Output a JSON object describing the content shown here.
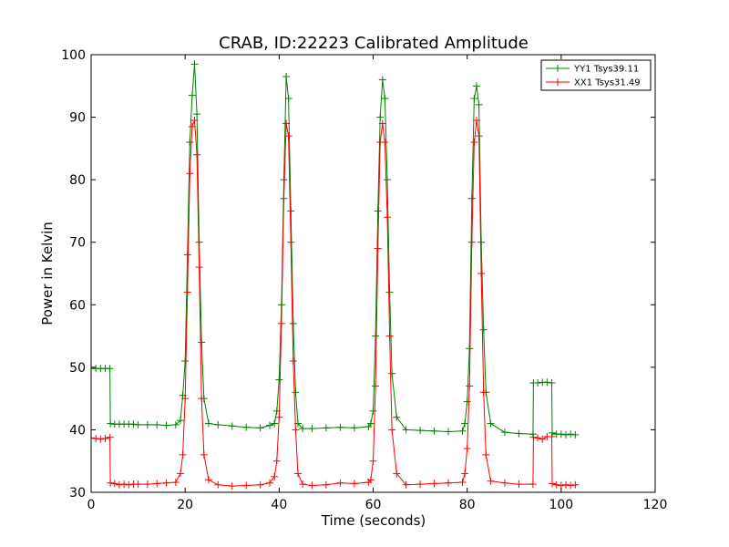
{
  "chart_data": {
    "type": "line",
    "title": "CRAB, ID:22223 Calibrated Amplitude",
    "xlabel": "Time (seconds)",
    "ylabel": "Power in Kelvin",
    "xlim": [
      0,
      120
    ],
    "ylim": [
      30,
      100
    ],
    "xticks": [
      "0",
      "20",
      "40",
      "60",
      "80",
      "100",
      "120"
    ],
    "yticks": [
      "30",
      "40",
      "50",
      "60",
      "70",
      "80",
      "90",
      "100"
    ],
    "grid": false,
    "legend_position": "top-right",
    "marker": "+",
    "series": [
      {
        "name": "YY1 Tsys39.11",
        "color": "#008000",
        "x": [
          0,
          1,
          2,
          3,
          4,
          4.1,
          5,
          6,
          7,
          8,
          9,
          10,
          12,
          14,
          16,
          18,
          19,
          19.5,
          20,
          20.5,
          21,
          21.5,
          22,
          22.5,
          23,
          23.5,
          24,
          25,
          27,
          30,
          33,
          36,
          38,
          39,
          39.5,
          40,
          40.5,
          41,
          41.5,
          42,
          42.5,
          43,
          43.5,
          44,
          45,
          47,
          50,
          53,
          56,
          59,
          59.5,
          60,
          60.5,
          61,
          61.5,
          62,
          62.5,
          63,
          63.5,
          64,
          65,
          67,
          70,
          73,
          76,
          79,
          79.5,
          80,
          80.5,
          81,
          81.5,
          82,
          82.5,
          83,
          83.5,
          84,
          85,
          88,
          91,
          94,
          94.1,
          95,
          96,
          97,
          98,
          98.1,
          99,
          100,
          101,
          102,
          103
        ],
        "values": [
          49.8,
          49.8,
          49.8,
          49.8,
          49.8,
          41,
          40.9,
          40.9,
          40.9,
          40.9,
          40.9,
          40.8,
          40.8,
          40.8,
          40.7,
          40.8,
          41.5,
          45.5,
          51,
          68,
          86,
          93.5,
          98.5,
          90.5,
          70,
          54,
          45,
          41,
          40.8,
          40.6,
          40.4,
          40.3,
          40.7,
          41,
          43,
          48,
          60,
          80,
          96.5,
          93,
          75,
          57,
          46,
          41,
          40.2,
          40.2,
          40.3,
          40.4,
          40.3,
          40.5,
          41,
          43,
          55,
          75,
          90,
          96,
          93,
          80,
          62,
          49,
          42,
          40,
          39.9,
          39.8,
          39.7,
          39.8,
          41,
          44.5,
          53,
          77,
          93,
          95,
          92,
          70,
          56,
          46,
          41,
          39.6,
          39.4,
          39.3,
          47.5,
          47.5,
          47.6,
          47.6,
          47.5,
          39.5,
          39.3,
          39.3,
          39.2,
          39.3,
          39.2
        ]
      },
      {
        "name": "XX1 Tsys31.49",
        "color": "#ff0000",
        "x": [
          0,
          1,
          2,
          3,
          4,
          4.1,
          5,
          6,
          7,
          8,
          9,
          10,
          12,
          14,
          16,
          18,
          19,
          19.5,
          20,
          20.5,
          21,
          21.5,
          22,
          22.5,
          23,
          23.5,
          24,
          25,
          27,
          30,
          33,
          36,
          38,
          39,
          39.5,
          40,
          40.5,
          41,
          41.5,
          42,
          42.5,
          43,
          43.5,
          44,
          45,
          47,
          50,
          53,
          56,
          59,
          59.5,
          60,
          60.5,
          61,
          61.5,
          62,
          62.5,
          63,
          63.5,
          64,
          65,
          67,
          70,
          73,
          76,
          79,
          79.5,
          80,
          80.5,
          81,
          81.5,
          82,
          82.5,
          83,
          83.5,
          84,
          85,
          88,
          91,
          94,
          94.1,
          95,
          96,
          97,
          98,
          98.1,
          99,
          100,
          101,
          102,
          103
        ],
        "values": [
          38.7,
          38.6,
          38.5,
          38.6,
          38.8,
          31.5,
          31.4,
          31.2,
          31.3,
          31.2,
          31.3,
          31.3,
          31.3,
          31.4,
          31.5,
          31.6,
          33,
          36,
          45,
          62,
          81,
          88.5,
          89.5,
          84,
          66,
          45,
          36,
          32,
          31.2,
          31,
          31.1,
          31.2,
          31.5,
          32.5,
          35,
          42,
          57,
          77,
          89,
          87,
          70,
          51,
          40,
          33,
          31.3,
          31.1,
          31.2,
          31.5,
          31.4,
          31.6,
          32,
          35,
          47,
          69,
          86,
          89,
          86,
          74,
          55,
          40,
          33,
          31.2,
          31.3,
          31.4,
          31.5,
          31.6,
          33,
          37,
          47,
          70,
          86,
          89.5,
          87,
          65,
          46,
          36,
          31.8,
          31.5,
          31.3,
          31.3,
          38.8,
          38.7,
          38.5,
          38.9,
          38.9,
          31.4,
          31.2,
          31.1,
          31.2,
          31.1,
          31.2
        ]
      }
    ]
  }
}
